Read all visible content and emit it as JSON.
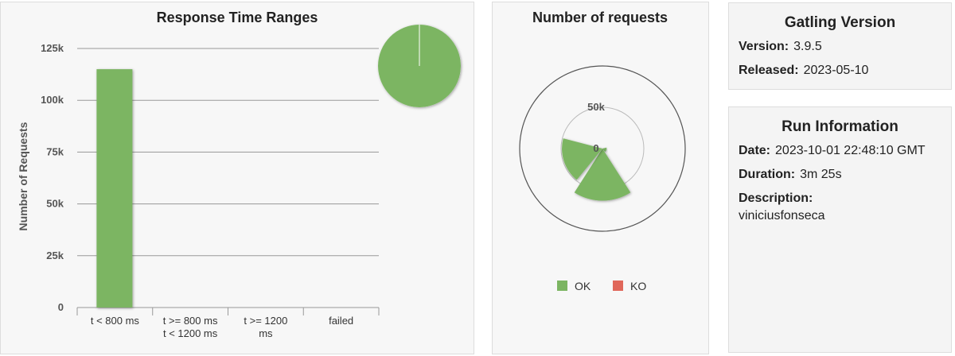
{
  "chart_data": [
    {
      "type": "bar",
      "title": "Response Time Ranges",
      "y_label": "Number of Requests",
      "categories": [
        "t < 800 ms",
        "t >= 800 ms\nt < 1200 ms",
        "t >= 1200\nms",
        "failed"
      ],
      "values": [
        115000,
        0,
        0,
        0
      ],
      "color": "#7cb562",
      "ylim": [
        0,
        125000
      ],
      "yticks": [
        0,
        {
          "value": 25000,
          "label": "25k"
        },
        {
          "value": 50000,
          "label": "50k"
        },
        {
          "value": 75000,
          "label": "75k"
        },
        {
          "value": 100000,
          "label": "100k"
        },
        {
          "value": 125000,
          "label": "125k"
        }
      ],
      "grid": true
    },
    {
      "type": "polar",
      "title": "Number of requests",
      "categories": [
        null,
        null,
        null,
        null,
        null
      ],
      "series": [
        {
          "name": "OK",
          "color": "#7cb562",
          "values": [
            0,
            5000,
            63000,
            49000,
            0
          ]
        },
        {
          "name": "KO",
          "color": "#e0675a",
          "values": [
            0,
            0,
            0,
            0,
            0
          ]
        }
      ],
      "ylim": [
        0,
        100000
      ],
      "yticks": [
        0,
        {
          "value": 50000,
          "label": "50k"
        }
      ],
      "legend": "bottom"
    }
  ],
  "gatling_version": {
    "title": "Gatling Version",
    "rows": [
      [
        "Version:",
        "3.9.5"
      ],
      [
        "Released:",
        "2023-05-10"
      ]
    ]
  },
  "run_information": {
    "title": "Run Information",
    "rows": [
      [
        "Date:",
        "2023-10-01 22:48:10 GMT"
      ],
      [
        "Duration:",
        "3m 25s"
      ]
    ],
    "description_label": "Description:",
    "description": "viniciusfonseca"
  }
}
